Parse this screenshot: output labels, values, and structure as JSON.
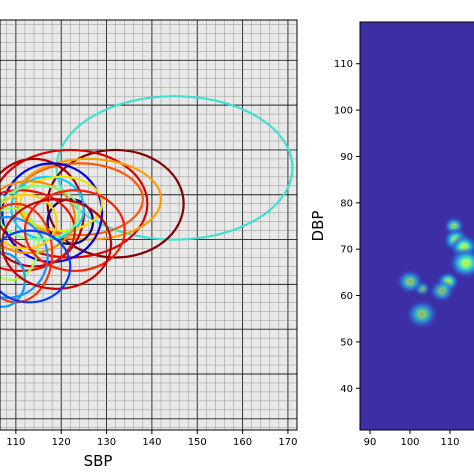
{
  "chart_data": [
    {
      "type": "scatter",
      "title": "",
      "xlabel": "SBP",
      "ylabel": "",
      "xlim": [
        106.5,
        172
      ],
      "ylim": [
        27.5,
        119
      ],
      "xticks": [
        "110",
        "120",
        "130",
        "140",
        "150",
        "160",
        "170"
      ],
      "grid": "major and minor, on",
      "background": "#e8e8e8",
      "ellipses": [
        {
          "cx": 145,
          "cy": 86,
          "rx": 26,
          "ry": 16,
          "color": "#40e0d0"
        },
        {
          "cx": 132,
          "cy": 78,
          "rx": 15,
          "ry": 12,
          "color": "#7f0000"
        },
        {
          "cx": 122,
          "cy": 78,
          "rx": 17,
          "ry": 12,
          "color": "#d50000"
        },
        {
          "cx": 124,
          "cy": 79,
          "rx": 14,
          "ry": 8,
          "color": "#ff5a00"
        },
        {
          "cx": 126,
          "cy": 79,
          "rx": 16,
          "ry": 9,
          "color": "#ffa000"
        },
        {
          "cx": 114,
          "cy": 76,
          "rx": 11,
          "ry": 12,
          "color": "#b00000"
        },
        {
          "cx": 118,
          "cy": 76,
          "rx": 11,
          "ry": 11,
          "color": "#0000dd"
        },
        {
          "cx": 122,
          "cy": 74,
          "rx": 5,
          "ry": 5,
          "color": "#00007f"
        },
        {
          "cx": 117,
          "cy": 77,
          "rx": 8,
          "ry": 7,
          "color": "#00cfff"
        },
        {
          "cx": 120,
          "cy": 78,
          "rx": 9,
          "ry": 6,
          "color": "#f0e000"
        },
        {
          "cx": 113,
          "cy": 75,
          "rx": 10,
          "ry": 8,
          "color": "#ff8c00"
        },
        {
          "cx": 111,
          "cy": 72,
          "rx": 12,
          "ry": 9,
          "color": "#ee1100"
        },
        {
          "cx": 110,
          "cy": 67,
          "rx": 8,
          "ry": 11,
          "color": "#ff3300"
        },
        {
          "cx": 109,
          "cy": 69,
          "rx": 6,
          "ry": 8,
          "color": "#a0ff50"
        },
        {
          "cx": 108,
          "cy": 66,
          "rx": 9,
          "ry": 9,
          "color": "#1e90ff"
        },
        {
          "cx": 107,
          "cy": 61,
          "rx": 5,
          "ry": 6,
          "color": "#00a0ff"
        },
        {
          "cx": 112,
          "cy": 74,
          "rx": 7,
          "ry": 6,
          "color": "#ffd000"
        },
        {
          "cx": 115,
          "cy": 76,
          "rx": 9,
          "ry": 6,
          "color": "#7fff7f"
        },
        {
          "cx": 123,
          "cy": 72,
          "rx": 11,
          "ry": 9,
          "color": "#ff2200"
        },
        {
          "cx": 119,
          "cy": 69,
          "rx": 12,
          "ry": 10,
          "color": "#c80000"
        },
        {
          "cx": 113,
          "cy": 64,
          "rx": 9,
          "ry": 8,
          "color": "#0040ff"
        }
      ]
    },
    {
      "type": "heatmap",
      "title": "",
      "xlabel": "",
      "ylabel": "DBP",
      "xlim": [
        87.5,
        116
      ],
      "ylim": [
        31,
        119
      ],
      "xticks": [
        "90",
        "100",
        "110"
      ],
      "yticks": [
        "40",
        "50",
        "60",
        "70",
        "80",
        "90",
        "100",
        "110"
      ],
      "colormap": "jet",
      "background": "#3c2fa6",
      "hotspots": [
        {
          "x": 111,
          "y": 75,
          "size": 1.2,
          "intensity": 0.55
        },
        {
          "x": 111.5,
          "y": 72,
          "size": 1.5,
          "intensity": 0.95
        },
        {
          "x": 113.5,
          "y": 70.5,
          "size": 1.6,
          "intensity": 0.75
        },
        {
          "x": 114,
          "y": 67,
          "size": 2.0,
          "intensity": 0.8
        },
        {
          "x": 109.5,
          "y": 63,
          "size": 1.3,
          "intensity": 0.7
        },
        {
          "x": 108,
          "y": 61,
          "size": 1.5,
          "intensity": 0.45
        },
        {
          "x": 103,
          "y": 61.5,
          "size": 1.0,
          "intensity": 0.4
        },
        {
          "x": 100,
          "y": 63,
          "size": 1.6,
          "intensity": 0.5
        },
        {
          "x": 103,
          "y": 56,
          "size": 1.9,
          "intensity": 0.5
        }
      ]
    }
  ]
}
